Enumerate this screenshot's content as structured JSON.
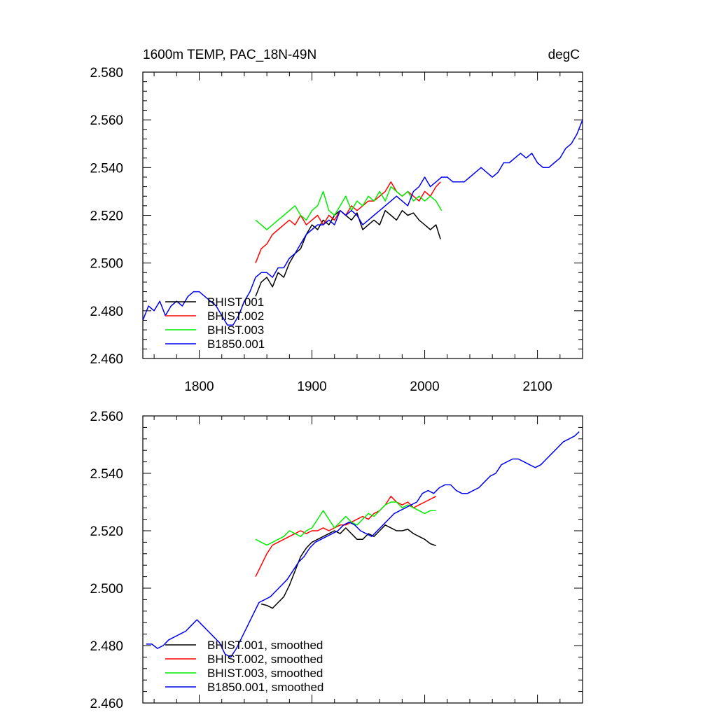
{
  "chart_data": [
    {
      "type": "line",
      "title": "1600m TEMP, PAC_18N-49N",
      "units": "degC",
      "xlim": [
        1750,
        2140
      ],
      "ylim": [
        2.46,
        2.58
      ],
      "xticks": [
        1800,
        1900,
        2000,
        2100
      ],
      "xtick_labels": [
        "1800",
        "1900",
        "2000",
        "2100"
      ],
      "yticks": [
        2.46,
        2.48,
        2.5,
        2.52,
        2.54,
        2.56,
        2.58
      ],
      "ytick_labels": [
        "2.460",
        "2.480",
        "2.500",
        "2.520",
        "2.540",
        "2.560",
        "2.580"
      ],
      "legend_position": "bottom-left",
      "series": [
        {
          "name": "BHIST.001",
          "color": "#000000",
          "x": [
            1850,
            1855,
            1860,
            1865,
            1870,
            1875,
            1880,
            1885,
            1890,
            1895,
            1900,
            1905,
            1910,
            1915,
            1920,
            1925,
            1930,
            1935,
            1940,
            1945,
            1950,
            1955,
            1960,
            1965,
            1970,
            1975,
            1980,
            1985,
            1990,
            1995,
            2000,
            2005,
            2010,
            2014
          ],
          "y": [
            2.486,
            2.492,
            2.494,
            2.49,
            2.496,
            2.494,
            2.5,
            2.504,
            2.506,
            2.512,
            2.516,
            2.514,
            2.518,
            2.516,
            2.52,
            2.522,
            2.52,
            2.518,
            2.521,
            2.514,
            2.516,
            2.518,
            2.516,
            2.522,
            2.52,
            2.518,
            2.522,
            2.52,
            2.521,
            2.518,
            2.516,
            2.514,
            2.516,
            2.51
          ]
        },
        {
          "name": "BHIST.002",
          "color": "#ff0000",
          "x": [
            1850,
            1855,
            1860,
            1865,
            1870,
            1875,
            1880,
            1885,
            1890,
            1895,
            1900,
            1905,
            1910,
            1915,
            1920,
            1925,
            1930,
            1935,
            1940,
            1945,
            1950,
            1955,
            1960,
            1965,
            1970,
            1975,
            1980,
            1985,
            1990,
            1995,
            2000,
            2005,
            2010,
            2014
          ],
          "y": [
            2.5,
            2.506,
            2.508,
            2.512,
            2.514,
            2.516,
            2.518,
            2.516,
            2.52,
            2.516,
            2.518,
            2.52,
            2.516,
            2.52,
            2.518,
            2.522,
            2.52,
            2.524,
            2.522,
            2.524,
            2.526,
            2.526,
            2.528,
            2.53,
            2.534,
            2.53,
            2.528,
            2.53,
            2.528,
            2.526,
            2.53,
            2.528,
            2.532,
            2.534
          ]
        },
        {
          "name": "BHIST.003",
          "color": "#00ee00",
          "x": [
            1850,
            1855,
            1860,
            1865,
            1870,
            1875,
            1880,
            1885,
            1890,
            1895,
            1900,
            1905,
            1910,
            1915,
            1920,
            1925,
            1930,
            1935,
            1940,
            1945,
            1950,
            1955,
            1960,
            1965,
            1970,
            1975,
            1980,
            1985,
            1990,
            1995,
            2000,
            2005,
            2010,
            2015
          ],
          "y": [
            2.518,
            2.516,
            2.514,
            2.516,
            2.518,
            2.52,
            2.522,
            2.524,
            2.52,
            2.518,
            2.522,
            2.524,
            2.53,
            2.522,
            2.52,
            2.524,
            2.528,
            2.522,
            2.526,
            2.524,
            2.528,
            2.526,
            2.53,
            2.526,
            2.532,
            2.53,
            2.528,
            2.53,
            2.526,
            2.528,
            2.526,
            2.528,
            2.526,
            2.522
          ]
        },
        {
          "name": "B1850.001",
          "color": "#0000ee",
          "x": [
            1750,
            1755,
            1760,
            1765,
            1770,
            1775,
            1780,
            1785,
            1790,
            1795,
            1800,
            1805,
            1810,
            1815,
            1820,
            1825,
            1830,
            1835,
            1840,
            1845,
            1850,
            1855,
            1860,
            1865,
            1870,
            1875,
            1880,
            1885,
            1890,
            1895,
            1900,
            1905,
            1910,
            1915,
            1920,
            1925,
            1930,
            1935,
            1940,
            1945,
            1950,
            1955,
            1960,
            1965,
            1970,
            1975,
            1980,
            1985,
            1990,
            1995,
            2000,
            2005,
            2010,
            2015,
            2020,
            2025,
            2030,
            2035,
            2040,
            2045,
            2050,
            2055,
            2060,
            2065,
            2070,
            2075,
            2080,
            2085,
            2090,
            2095,
            2100,
            2105,
            2110,
            2115,
            2120,
            2125,
            2130,
            2135,
            2140
          ],
          "y": [
            2.476,
            2.482,
            2.48,
            2.484,
            2.478,
            2.482,
            2.484,
            2.482,
            2.486,
            2.488,
            2.488,
            2.486,
            2.484,
            2.482,
            2.478,
            2.474,
            2.474,
            2.478,
            2.484,
            2.488,
            2.494,
            2.496,
            2.496,
            2.494,
            2.498,
            2.498,
            2.502,
            2.504,
            2.508,
            2.512,
            2.514,
            2.516,
            2.516,
            2.518,
            2.516,
            2.522,
            2.52,
            2.522,
            2.52,
            2.516,
            2.518,
            2.52,
            2.522,
            2.524,
            2.526,
            2.528,
            2.526,
            2.524,
            2.53,
            2.532,
            2.536,
            2.532,
            2.534,
            2.536,
            2.536,
            2.534,
            2.534,
            2.534,
            2.536,
            2.538,
            2.54,
            2.538,
            2.536,
            2.538,
            2.542,
            2.542,
            2.544,
            2.546,
            2.544,
            2.546,
            2.542,
            2.54,
            2.54,
            2.542,
            2.544,
            2.548,
            2.55,
            2.554,
            2.56
          ]
        }
      ]
    },
    {
      "type": "line",
      "xlim": [
        1750,
        2140
      ],
      "ylim": [
        2.46,
        2.56
      ],
      "xticks": [
        1800,
        1900,
        2000,
        2100
      ],
      "yticks": [
        2.46,
        2.48,
        2.5,
        2.52,
        2.54,
        2.56
      ],
      "ytick_labels": [
        "2.460",
        "2.480",
        "2.500",
        "2.520",
        "2.540",
        "2.560"
      ],
      "legend_position": "bottom-left",
      "series": [
        {
          "name": "BHIST.001, smoothed",
          "color": "#000000",
          "x": [
            1855,
            1860,
            1865,
            1870,
            1875,
            1880,
            1885,
            1890,
            1895,
            1900,
            1905,
            1910,
            1915,
            1920,
            1925,
            1930,
            1935,
            1940,
            1945,
            1950,
            1955,
            1960,
            1965,
            1970,
            1975,
            1980,
            1985,
            1990,
            1995,
            2000,
            2005,
            2010
          ],
          "y": [
            2.4945,
            2.494,
            2.493,
            2.495,
            2.497,
            2.501,
            2.506,
            2.511,
            2.514,
            2.516,
            2.517,
            2.518,
            2.519,
            2.52,
            2.519,
            2.521,
            2.519,
            2.517,
            2.517,
            2.519,
            2.518,
            2.52,
            2.522,
            2.521,
            2.52,
            2.52,
            2.5205,
            2.519,
            2.518,
            2.517,
            2.5155,
            2.5148
          ]
        },
        {
          "name": "BHIST.002, smoothed",
          "color": "#ff0000",
          "x": [
            1850,
            1855,
            1860,
            1865,
            1870,
            1875,
            1880,
            1885,
            1890,
            1895,
            1900,
            1905,
            1910,
            1915,
            1920,
            1925,
            1930,
            1935,
            1940,
            1945,
            1950,
            1955,
            1960,
            1965,
            1970,
            1975,
            1980,
            1985,
            1990,
            1995,
            2000,
            2005,
            2010
          ],
          "y": [
            2.504,
            2.508,
            2.512,
            2.515,
            2.516,
            2.517,
            2.518,
            2.519,
            2.52,
            2.519,
            2.52,
            2.52,
            2.521,
            2.52,
            2.521,
            2.522,
            2.522,
            2.523,
            2.524,
            2.525,
            2.524,
            2.526,
            2.527,
            2.529,
            2.532,
            2.53,
            2.529,
            2.53,
            2.528,
            2.529,
            2.53,
            2.531,
            2.532
          ]
        },
        {
          "name": "BHIST.003, smoothed",
          "color": "#00ee00",
          "x": [
            1850,
            1855,
            1860,
            1865,
            1870,
            1875,
            1880,
            1885,
            1890,
            1895,
            1900,
            1905,
            1910,
            1915,
            1920,
            1925,
            1930,
            1935,
            1940,
            1945,
            1950,
            1955,
            1960,
            1965,
            1970,
            1975,
            1980,
            1985,
            1990,
            1995,
            2000,
            2005,
            2010
          ],
          "y": [
            2.517,
            2.516,
            2.515,
            2.516,
            2.517,
            2.518,
            2.52,
            2.519,
            2.518,
            2.52,
            2.521,
            2.524,
            2.527,
            2.524,
            2.521,
            2.523,
            2.525,
            2.523,
            2.522,
            2.524,
            2.526,
            2.525,
            2.527,
            2.529,
            2.53,
            2.53,
            2.528,
            2.529,
            2.528,
            2.527,
            2.526,
            2.527,
            2.527
          ]
        },
        {
          "name": "B1850.001, smoothed",
          "color": "#0000ee",
          "x": [
            1753,
            1758,
            1763,
            1768,
            1773,
            1778,
            1783,
            1788,
            1793,
            1798,
            1803,
            1808,
            1813,
            1818,
            1823,
            1828,
            1833,
            1838,
            1843,
            1848,
            1853,
            1858,
            1863,
            1868,
            1873,
            1878,
            1883,
            1888,
            1893,
            1898,
            1903,
            1908,
            1913,
            1918,
            1923,
            1928,
            1933,
            1938,
            1943,
            1948,
            1953,
            1958,
            1963,
            1968,
            1973,
            1978,
            1983,
            1988,
            1993,
            1998,
            2003,
            2008,
            2013,
            2018,
            2023,
            2028,
            2033,
            2038,
            2043,
            2048,
            2053,
            2058,
            2063,
            2068,
            2073,
            2078,
            2083,
            2088,
            2093,
            2098,
            2103,
            2108,
            2113,
            2118,
            2123,
            2128,
            2133,
            2137
          ],
          "y": [
            2.4805,
            2.4805,
            2.479,
            2.48,
            2.482,
            2.483,
            2.484,
            2.485,
            2.487,
            2.489,
            2.487,
            2.485,
            2.483,
            2.481,
            2.477,
            2.476,
            2.479,
            2.483,
            2.487,
            2.491,
            2.495,
            2.496,
            2.497,
            2.499,
            2.501,
            2.503,
            2.506,
            2.509,
            2.511,
            2.514,
            2.516,
            2.517,
            2.518,
            2.519,
            2.52,
            2.522,
            2.523,
            2.522,
            2.52,
            2.519,
            2.518,
            2.52,
            2.522,
            2.524,
            2.526,
            2.527,
            2.528,
            2.529,
            2.53,
            2.533,
            2.534,
            2.533,
            2.535,
            2.536,
            2.536,
            2.534,
            2.533,
            2.533,
            2.534,
            2.535,
            2.537,
            2.539,
            2.54,
            2.543,
            2.544,
            2.545,
            2.545,
            2.544,
            2.543,
            2.542,
            2.543,
            2.545,
            2.547,
            2.549,
            2.551,
            2.552,
            2.553,
            2.5545
          ]
        }
      ]
    }
  ]
}
